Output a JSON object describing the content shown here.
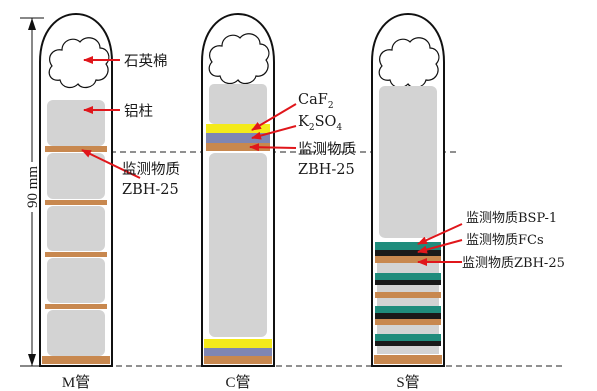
{
  "dimension": {
    "label": "90 mm"
  },
  "tubes": [
    {
      "id": "M",
      "label": "M管"
    },
    {
      "id": "C",
      "label": "C管"
    },
    {
      "id": "S",
      "label": "S管"
    }
  ],
  "labels": {
    "quartz_wool": "石英棉",
    "aluminum_rod": "铝柱",
    "monitor_m_line1": "监测物质",
    "monitor_m_line2": "ZBH-25",
    "caf2_base": "CaF",
    "caf2_sub": "2",
    "k2so4_k": "K",
    "k2so4_sub1": "2",
    "k2so4_so": "SO",
    "k2so4_sub2": "4",
    "monitor_c_line1": "监测物质",
    "monitor_c_line2": "ZBH-25",
    "monitor_s_bsp": "监测物质BSP-1",
    "monitor_s_fcs": "监测物质FCs",
    "monitor_s_zbh": "监测物质ZBH-25"
  },
  "colors": {
    "outline": "#111111",
    "aluminum": "#d3d3d3",
    "zbh": "#c8884f",
    "caf2": "#f4ea1a",
    "k2so4": "#7f86b3",
    "bsp": "#1f8c7c",
    "fcs": "#1a1a1a",
    "arrow": "#e0161b"
  }
}
